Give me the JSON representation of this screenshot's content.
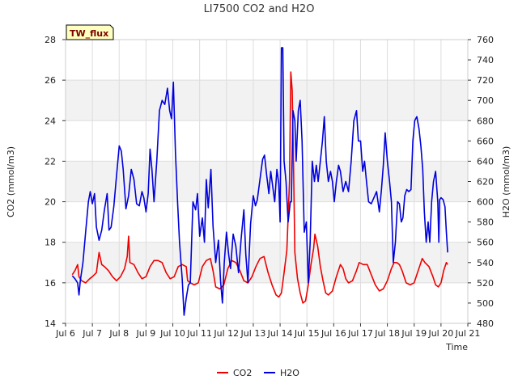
{
  "chart_data": {
    "type": "line",
    "title": "LI7500 CO2 and H2O",
    "site_label": "TW_flux",
    "xlabel": "Time",
    "ylabel_left": "CO2 (mmol/m3)",
    "ylabel_right": "H2O (mmol/m3)",
    "ylim_left": [
      14,
      28
    ],
    "ylim_right": [
      480,
      760
    ],
    "xlim": [
      6,
      21
    ],
    "x_ticks": [
      {
        "x": 6,
        "label": "Jul 6"
      },
      {
        "x": 7,
        "label": "Jul 7"
      },
      {
        "x": 8,
        "label": "Jul 8"
      },
      {
        "x": 9,
        "label": "Jul 9"
      },
      {
        "x": 10,
        "label": "Jul 10"
      },
      {
        "x": 11,
        "label": "Jul 11"
      },
      {
        "x": 12,
        "label": "Jul 12"
      },
      {
        "x": 13,
        "label": "Jul 13"
      },
      {
        "x": 14,
        "label": "Jul 14"
      },
      {
        "x": 15,
        "label": "Jul 15"
      },
      {
        "x": 16,
        "label": "Jul 16"
      },
      {
        "x": 17,
        "label": "Jul 17"
      },
      {
        "x": 18,
        "label": "Jul 18"
      },
      {
        "x": 19,
        "label": "Jul 19"
      },
      {
        "x": 20,
        "label": "Jul 20"
      },
      {
        "x": 21,
        "label": "Jul 21"
      }
    ],
    "y_ticks_left": [
      "14",
      "16",
      "18",
      "20",
      "22",
      "24",
      "26",
      "28"
    ],
    "y_ticks_right": [
      "480",
      "500",
      "520",
      "540",
      "560",
      "580",
      "600",
      "620",
      "640",
      "660",
      "680",
      "700",
      "720",
      "740",
      "760"
    ],
    "bands_left": [
      [
        16,
        18
      ],
      [
        20,
        22
      ],
      [
        24,
        26
      ]
    ],
    "series": [
      {
        "name": "CO2",
        "axis": "left",
        "color": "#ee0000",
        "points": [
          [
            6.25,
            16.4
          ],
          [
            6.35,
            16.6
          ],
          [
            6.45,
            16.9
          ],
          [
            6.5,
            16.3
          ],
          [
            6.6,
            16.1
          ],
          [
            6.75,
            16.0
          ],
          [
            6.9,
            16.2
          ],
          [
            7.0,
            16.3
          ],
          [
            7.15,
            16.5
          ],
          [
            7.25,
            17.5
          ],
          [
            7.35,
            16.9
          ],
          [
            7.45,
            16.8
          ],
          [
            7.6,
            16.6
          ],
          [
            7.75,
            16.3
          ],
          [
            7.9,
            16.1
          ],
          [
            8.05,
            16.3
          ],
          [
            8.2,
            16.7
          ],
          [
            8.3,
            17.3
          ],
          [
            8.35,
            18.3
          ],
          [
            8.4,
            17.0
          ],
          [
            8.55,
            16.9
          ],
          [
            8.7,
            16.5
          ],
          [
            8.85,
            16.2
          ],
          [
            9.0,
            16.3
          ],
          [
            9.15,
            16.8
          ],
          [
            9.3,
            17.1
          ],
          [
            9.45,
            17.1
          ],
          [
            9.6,
            17.0
          ],
          [
            9.75,
            16.5
          ],
          [
            9.9,
            16.2
          ],
          [
            10.05,
            16.3
          ],
          [
            10.2,
            16.8
          ],
          [
            10.35,
            16.9
          ],
          [
            10.5,
            16.8
          ],
          [
            10.55,
            16.1
          ],
          [
            10.65,
            16.0
          ],
          [
            10.8,
            15.9
          ],
          [
            10.95,
            16.0
          ],
          [
            11.1,
            16.8
          ],
          [
            11.25,
            17.1
          ],
          [
            11.4,
            17.2
          ],
          [
            11.5,
            16.6
          ],
          [
            11.6,
            15.8
          ],
          [
            11.75,
            15.7
          ],
          [
            11.9,
            15.9
          ],
          [
            12.05,
            16.7
          ],
          [
            12.2,
            17.1
          ],
          [
            12.35,
            17.0
          ],
          [
            12.5,
            16.6
          ],
          [
            12.65,
            16.1
          ],
          [
            12.8,
            16.0
          ],
          [
            12.95,
            16.3
          ],
          [
            13.1,
            16.8
          ],
          [
            13.25,
            17.2
          ],
          [
            13.4,
            17.3
          ],
          [
            13.55,
            16.5
          ],
          [
            13.7,
            15.9
          ],
          [
            13.85,
            15.4
          ],
          [
            13.95,
            15.3
          ],
          [
            14.05,
            15.5
          ],
          [
            14.15,
            16.5
          ],
          [
            14.25,
            17.6
          ],
          [
            14.35,
            21.0
          ],
          [
            14.4,
            26.4
          ],
          [
            14.45,
            25.5
          ],
          [
            14.5,
            22.0
          ],
          [
            14.55,
            17.5
          ],
          [
            14.65,
            16.2
          ],
          [
            14.75,
            15.5
          ],
          [
            14.85,
            15.0
          ],
          [
            14.95,
            15.1
          ],
          [
            15.05,
            15.9
          ],
          [
            15.15,
            16.9
          ],
          [
            15.25,
            17.7
          ],
          [
            15.3,
            18.4
          ],
          [
            15.4,
            17.8
          ],
          [
            15.5,
            16.8
          ],
          [
            15.6,
            16.1
          ],
          [
            15.7,
            15.5
          ],
          [
            15.8,
            15.4
          ],
          [
            15.95,
            15.6
          ],
          [
            16.1,
            16.3
          ],
          [
            16.25,
            16.9
          ],
          [
            16.35,
            16.7
          ],
          [
            16.45,
            16.2
          ],
          [
            16.55,
            16.0
          ],
          [
            16.7,
            16.1
          ],
          [
            16.85,
            16.6
          ],
          [
            16.95,
            17.0
          ],
          [
            17.1,
            16.9
          ],
          [
            17.25,
            16.9
          ],
          [
            17.4,
            16.4
          ],
          [
            17.55,
            15.9
          ],
          [
            17.7,
            15.6
          ],
          [
            17.85,
            15.7
          ],
          [
            18.0,
            16.1
          ],
          [
            18.15,
            16.7
          ],
          [
            18.25,
            17.0
          ],
          [
            18.35,
            17.0
          ],
          [
            18.45,
            16.9
          ],
          [
            18.55,
            16.6
          ],
          [
            18.7,
            16.0
          ],
          [
            18.85,
            15.9
          ],
          [
            19.0,
            16.0
          ],
          [
            19.1,
            16.4
          ],
          [
            19.2,
            16.8
          ],
          [
            19.3,
            17.2
          ],
          [
            19.4,
            17.0
          ],
          [
            19.55,
            16.8
          ],
          [
            19.7,
            16.3
          ],
          [
            19.8,
            15.9
          ],
          [
            19.9,
            15.8
          ],
          [
            20.0,
            16.0
          ],
          [
            20.1,
            16.6
          ],
          [
            20.2,
            17.0
          ],
          [
            20.25,
            16.9
          ]
        ]
      },
      {
        "name": "H2O",
        "axis": "right",
        "color": "#0000dd",
        "points": [
          [
            6.25,
            527
          ],
          [
            6.35,
            524
          ],
          [
            6.45,
            520
          ],
          [
            6.5,
            508
          ],
          [
            6.55,
            522
          ],
          [
            6.65,
            540
          ],
          [
            6.75,
            570
          ],
          [
            6.85,
            600
          ],
          [
            6.92,
            610
          ],
          [
            7.0,
            598
          ],
          [
            7.08,
            608
          ],
          [
            7.15,
            575
          ],
          [
            7.25,
            562
          ],
          [
            7.35,
            572
          ],
          [
            7.45,
            592
          ],
          [
            7.55,
            608
          ],
          [
            7.62,
            572
          ],
          [
            7.7,
            575
          ],
          [
            7.8,
            595
          ],
          [
            7.9,
            626
          ],
          [
            8.0,
            655
          ],
          [
            8.08,
            650
          ],
          [
            8.15,
            632
          ],
          [
            8.25,
            593
          ],
          [
            8.35,
            606
          ],
          [
            8.45,
            632
          ],
          [
            8.55,
            622
          ],
          [
            8.65,
            598
          ],
          [
            8.75,
            596
          ],
          [
            8.85,
            610
          ],
          [
            8.92,
            604
          ],
          [
            9.0,
            590
          ],
          [
            9.08,
            608
          ],
          [
            9.15,
            652
          ],
          [
            9.22,
            632
          ],
          [
            9.3,
            600
          ],
          [
            9.4,
            640
          ],
          [
            9.5,
            690
          ],
          [
            9.6,
            700
          ],
          [
            9.7,
            696
          ],
          [
            9.8,
            712
          ],
          [
            9.88,
            690
          ],
          [
            9.95,
            682
          ],
          [
            10.02,
            718
          ],
          [
            10.1,
            648
          ],
          [
            10.18,
            598
          ],
          [
            10.25,
            560
          ],
          [
            10.35,
            524
          ],
          [
            10.42,
            488
          ],
          [
            10.5,
            505
          ],
          [
            10.58,
            518
          ],
          [
            10.65,
            520
          ],
          [
            10.75,
            600
          ],
          [
            10.85,
            592
          ],
          [
            10.92,
            608
          ],
          [
            11.0,
            566
          ],
          [
            11.1,
            584
          ],
          [
            11.18,
            560
          ],
          [
            11.25,
            622
          ],
          [
            11.32,
            594
          ],
          [
            11.42,
            632
          ],
          [
            11.5,
            576
          ],
          [
            11.6,
            540
          ],
          [
            11.7,
            562
          ],
          [
            11.78,
            522
          ],
          [
            11.85,
            500
          ],
          [
            11.92,
            540
          ],
          [
            12.0,
            570
          ],
          [
            12.08,
            548
          ],
          [
            12.15,
            534
          ],
          [
            12.25,
            568
          ],
          [
            12.35,
            556
          ],
          [
            12.45,
            530
          ],
          [
            12.55,
            564
          ],
          [
            12.65,
            592
          ],
          [
            12.72,
            548
          ],
          [
            12.8,
            520
          ],
          [
            12.9,
            578
          ],
          [
            13.0,
            606
          ],
          [
            13.08,
            596
          ],
          [
            13.15,
            602
          ],
          [
            13.25,
            622
          ],
          [
            13.35,
            642
          ],
          [
            13.42,
            646
          ],
          [
            13.5,
            626
          ],
          [
            13.58,
            608
          ],
          [
            13.65,
            630
          ],
          [
            13.72,
            616
          ],
          [
            13.8,
            600
          ],
          [
            13.88,
            632
          ],
          [
            13.95,
            618
          ],
          [
            14.0,
            580
          ],
          [
            14.05,
            752
          ],
          [
            14.1,
            752
          ],
          [
            14.15,
            640
          ],
          [
            14.22,
            620
          ],
          [
            14.3,
            580
          ],
          [
            14.38,
            600
          ],
          [
            14.42,
            600
          ],
          [
            14.48,
            690
          ],
          [
            14.55,
            680
          ],
          [
            14.6,
            640
          ],
          [
            14.68,
            690
          ],
          [
            14.75,
            700
          ],
          [
            14.82,
            660
          ],
          [
            14.9,
            570
          ],
          [
            14.98,
            580
          ],
          [
            15.05,
            520
          ],
          [
            15.12,
            560
          ],
          [
            15.2,
            640
          ],
          [
            15.28,
            620
          ],
          [
            15.35,
            636
          ],
          [
            15.42,
            620
          ],
          [
            15.5,
            640
          ],
          [
            15.58,
            660
          ],
          [
            15.65,
            684
          ],
          [
            15.72,
            640
          ],
          [
            15.8,
            620
          ],
          [
            15.88,
            630
          ],
          [
            15.95,
            620
          ],
          [
            16.02,
            600
          ],
          [
            16.1,
            620
          ],
          [
            16.18,
            636
          ],
          [
            16.25,
            630
          ],
          [
            16.35,
            610
          ],
          [
            16.45,
            620
          ],
          [
            16.55,
            610
          ],
          [
            16.65,
            640
          ],
          [
            16.75,
            680
          ],
          [
            16.85,
            690
          ],
          [
            16.92,
            660
          ],
          [
            17.0,
            660
          ],
          [
            17.08,
            630
          ],
          [
            17.15,
            640
          ],
          [
            17.22,
            620
          ],
          [
            17.3,
            600
          ],
          [
            17.4,
            598
          ],
          [
            17.5,
            604
          ],
          [
            17.6,
            610
          ],
          [
            17.7,
            590
          ],
          [
            17.78,
            612
          ],
          [
            17.85,
            636
          ],
          [
            17.92,
            668
          ],
          [
            18.0,
            640
          ],
          [
            18.08,
            620
          ],
          [
            18.15,
            600
          ],
          [
            18.22,
            540
          ],
          [
            18.3,
            560
          ],
          [
            18.38,
            600
          ],
          [
            18.45,
            598
          ],
          [
            18.52,
            580
          ],
          [
            18.58,
            584
          ],
          [
            18.65,
            606
          ],
          [
            18.72,
            612
          ],
          [
            18.8,
            610
          ],
          [
            18.88,
            612
          ],
          [
            18.95,
            660
          ],
          [
            19.02,
            680
          ],
          [
            19.1,
            684
          ],
          [
            19.18,
            672
          ],
          [
            19.25,
            655
          ],
          [
            19.32,
            632
          ],
          [
            19.38,
            590
          ],
          [
            19.45,
            560
          ],
          [
            19.52,
            580
          ],
          [
            19.58,
            560
          ],
          [
            19.65,
            600
          ],
          [
            19.72,
            620
          ],
          [
            19.8,
            630
          ],
          [
            19.88,
            600
          ],
          [
            19.92,
            560
          ],
          [
            19.95,
            602
          ],
          [
            20.0,
            604
          ],
          [
            20.08,
            602
          ],
          [
            20.15,
            595
          ],
          [
            20.2,
            570
          ],
          [
            20.25,
            550
          ]
        ]
      }
    ],
    "legend": [
      {
        "label": "CO2",
        "color": "#ee0000"
      },
      {
        "label": "H2O",
        "color": "#0000dd"
      }
    ],
    "legend_position": "bottom-center"
  }
}
